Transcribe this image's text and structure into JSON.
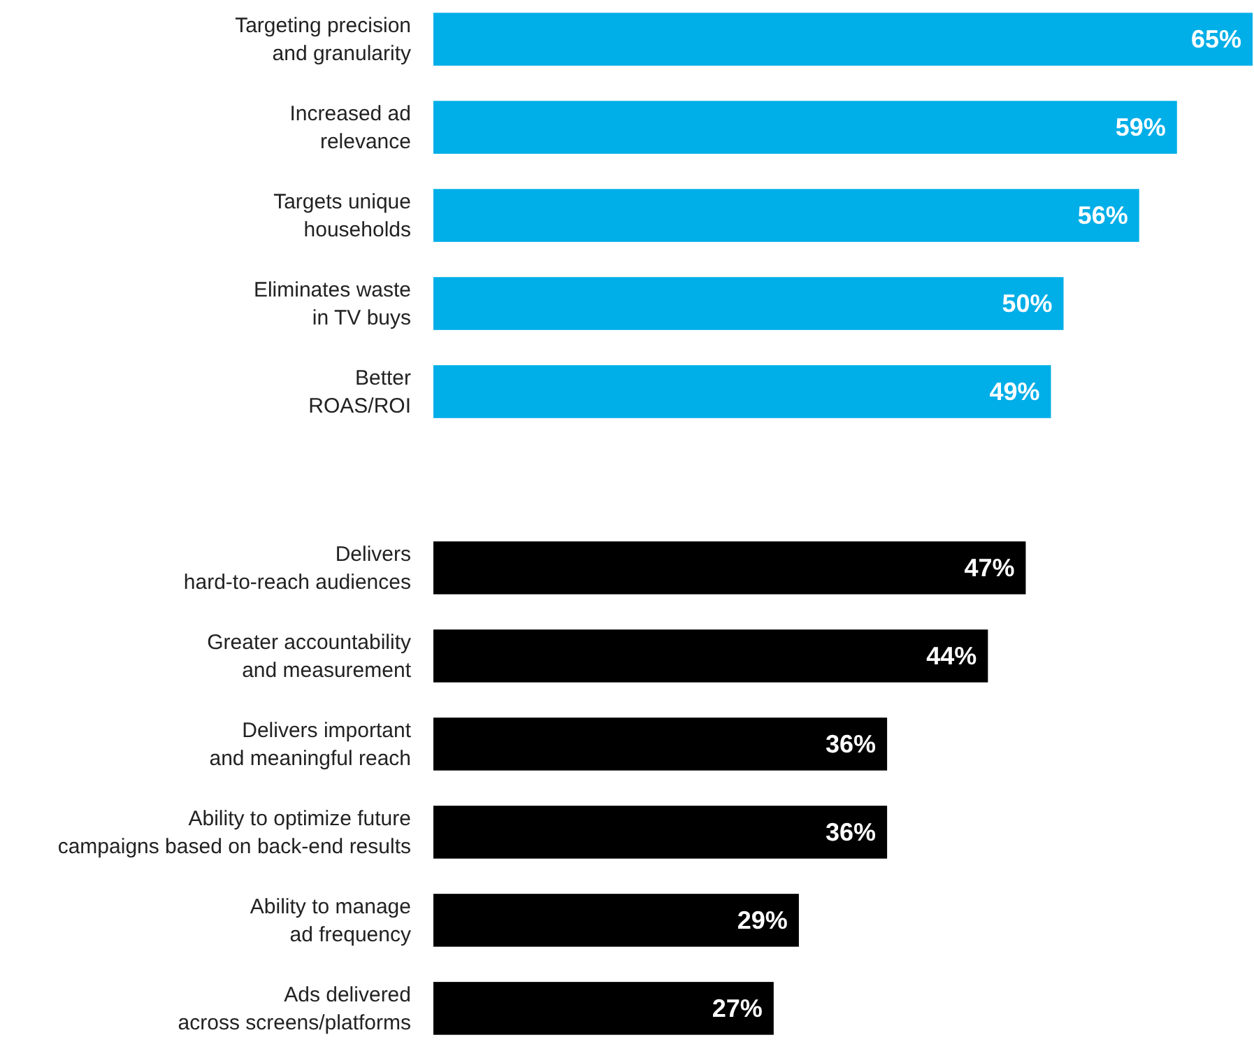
{
  "chart_data": {
    "type": "bar",
    "orientation": "horizontal",
    "categories": [
      "Targeting precision\nand granularity",
      "Increased ad\nrelevance",
      "Targets unique\nhouseholds",
      "Eliminates waste\nin TV buys",
      "Better\nROAS/ROI",
      null,
      "Delivers\nhard-to-reach audiences",
      "Greater accountability\nand measurement",
      "Delivers important\nand meaningful reach",
      "Ability to optimize future\ncampaigns based on back-end results",
      "Ability to manage\nad frequency",
      "Ads delivered\nacross screens/platforms"
    ],
    "values": [
      65,
      59,
      56,
      50,
      49,
      null,
      47,
      44,
      36,
      36,
      29,
      27
    ],
    "value_labels": [
      "65%",
      "59%",
      "56%",
      "50%",
      "49%",
      null,
      "47%",
      "44%",
      "36%",
      "36%",
      "29%",
      "27%"
    ],
    "colors": [
      "#00aee8",
      "#00aee8",
      "#00aee8",
      "#00aee8",
      "#00aee8",
      null,
      "#000000",
      "#000000",
      "#000000",
      "#000000",
      "#000000",
      "#000000"
    ]
  }
}
